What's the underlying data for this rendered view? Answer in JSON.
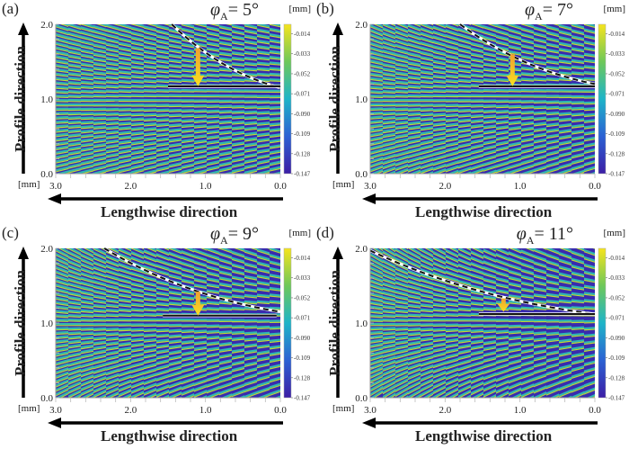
{
  "chart_data": [
    {
      "type": "heatmap",
      "panel_label": "(a)",
      "title": "φA= 5°",
      "phi_symbol": "φ",
      "phi_sub": "A",
      "phi_value": "= 5°",
      "xlabel": "Lengthwise direction",
      "ylabel": "Profile direction",
      "xunit": "[mm]",
      "colorbar_unit": "[mm]",
      "x_ticks": [
        "3.0",
        "2.0",
        "1.0",
        "0.0"
      ],
      "y_ticks": [
        "2.0",
        "1.0",
        "0.0"
      ],
      "xlim": [
        3.0,
        0.0
      ],
      "ylim": [
        0.0,
        2.0
      ],
      "colorbar_ticks": [
        "-0.014",
        "-0.033",
        "-0.052",
        "-0.071",
        "-0.090",
        "-0.109",
        "-0.128",
        "-0.147"
      ],
      "colorbar_range": [
        -0.147,
        -0.005
      ],
      "dashed_curve": {
        "x_start": 1.45,
        "y_start": 2.0,
        "x_end": 0.0,
        "y_end": 1.15
      },
      "solid_line": {
        "x_start": 1.5,
        "x_end": 0.0,
        "y": 1.17
      },
      "arrow": {
        "x": 1.1,
        "y_from": 1.68,
        "y_to": 1.17
      },
      "pattern_angle_deg": 5
    },
    {
      "type": "heatmap",
      "panel_label": "(b)",
      "title": "φA= 7°",
      "phi_symbol": "φ",
      "phi_sub": "A",
      "phi_value": "= 7°",
      "xlabel": "Lengthwise direction",
      "ylabel": "Profile direction",
      "xunit": "[mm]",
      "colorbar_unit": "[mm]",
      "x_ticks": [
        "3.0",
        "2.0",
        "1.0",
        "0.0"
      ],
      "y_ticks": [
        "2.0",
        "1.0",
        "0.0"
      ],
      "xlim": [
        3.0,
        0.0
      ],
      "ylim": [
        0.0,
        2.0
      ],
      "colorbar_ticks": [
        "-0.014",
        "-0.033",
        "-0.052",
        "-0.071",
        "-0.090",
        "-0.109",
        "-0.128",
        "-0.147"
      ],
      "colorbar_range": [
        -0.147,
        -0.005
      ],
      "dashed_curve": {
        "x_start": 1.8,
        "y_start": 2.0,
        "x_end": 0.0,
        "y_end": 1.2
      },
      "solid_line": {
        "x_start": 1.55,
        "x_end": 0.0,
        "y": 1.17
      },
      "arrow": {
        "x": 1.1,
        "y_from": 1.6,
        "y_to": 1.17
      },
      "pattern_angle_deg": 7
    },
    {
      "type": "heatmap",
      "panel_label": "(c)",
      "title": "φA= 9°",
      "phi_symbol": "φ",
      "phi_sub": "A",
      "phi_value": "= 9°",
      "xlabel": "Lengthwise direction",
      "ylabel": "Profile direction",
      "xunit": "[mm]",
      "colorbar_unit": "[mm]",
      "x_ticks": [
        "3.0",
        "2.0",
        "1.0",
        "0.0"
      ],
      "y_ticks": [
        "2.0",
        "1.0",
        "0.0"
      ],
      "xlim": [
        3.0,
        0.0
      ],
      "ylim": [
        0.0,
        2.0
      ],
      "colorbar_ticks": [
        "-0.014",
        "-0.033",
        "-0.052",
        "-0.071",
        "-0.090",
        "-0.109",
        "-0.128",
        "-0.147"
      ],
      "colorbar_range": [
        -0.147,
        -0.005
      ],
      "dashed_curve": {
        "x_start": 2.35,
        "y_start": 2.0,
        "x_end": 0.0,
        "y_end": 1.15
      },
      "solid_line": {
        "x_start": 1.57,
        "x_end": 0.05,
        "y": 1.1
      },
      "arrow": {
        "x": 1.1,
        "y_from": 1.42,
        "y_to": 1.1
      },
      "pattern_angle_deg": 9
    },
    {
      "type": "heatmap",
      "panel_label": "(d)",
      "title": "φA= 11°",
      "phi_symbol": "φ",
      "phi_sub": "A",
      "phi_value": "= 11°",
      "xlabel": "Lengthwise direction",
      "ylabel": "Profile direction",
      "xunit": "[mm]",
      "colorbar_unit": "[mm]",
      "x_ticks": [
        "3.0",
        "2.0",
        "1.0",
        "0.0"
      ],
      "y_ticks": [
        "2.0",
        "1.0",
        "0.0"
      ],
      "xlim": [
        3.0,
        0.0
      ],
      "ylim": [
        0.0,
        2.0
      ],
      "colorbar_ticks": [
        "-0.014",
        "-0.033",
        "-0.052",
        "-0.071",
        "-0.090",
        "-0.109",
        "-0.128",
        "-0.147"
      ],
      "colorbar_range": [
        -0.147,
        -0.005
      ],
      "dashed_curve": {
        "x_start": 3.0,
        "y_start": 1.97,
        "x_end": 0.0,
        "y_end": 1.12
      },
      "solid_line": {
        "x_start": 1.55,
        "x_end": 0.0,
        "y": 1.12
      },
      "arrow": {
        "x": 1.22,
        "y_from": 1.33,
        "y_to": 1.15
      },
      "pattern_angle_deg": 11
    }
  ],
  "colors": {
    "low": "#3b1fa8",
    "mid": "#1fb0c9",
    "high": "#f5e31b",
    "arrow": "#f5b82e"
  }
}
